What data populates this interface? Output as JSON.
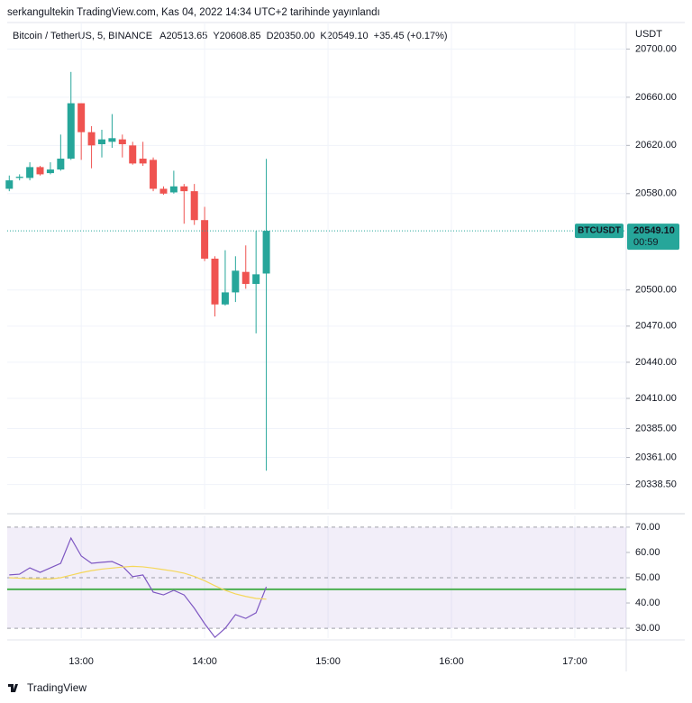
{
  "header": {
    "publisher": "serkangultekin TradingView.com, Kas 04, 2022 14:34 UTC+2 tarihinde yayınlandı",
    "symbol": "Bitcoin / TetherUS, 5, BINANCE",
    "ohlc": [
      {
        "key": "A",
        "value": "20513.65"
      },
      {
        "key": "Y",
        "value": "20608.85"
      },
      {
        "key": "D",
        "value": "20350.00"
      },
      {
        "key": "K",
        "value": "20549.10"
      }
    ],
    "change": "+35.45 (+0.17%)"
  },
  "footer": "TradingView",
  "chart_data": [
    {
      "type": "candlestick",
      "axis_label": "USDT",
      "x": [
        "12:25",
        "12:30",
        "12:35",
        "12:40",
        "12:45",
        "12:50",
        "12:55",
        "13:00",
        "13:05",
        "13:10",
        "13:15",
        "13:20",
        "13:25",
        "13:30",
        "13:35",
        "13:40",
        "13:45",
        "13:50",
        "13:55",
        "14:00",
        "14:05",
        "14:10",
        "14:15",
        "14:20",
        "14:25",
        "14:30"
      ],
      "candles": {
        "open": [
          20584,
          20593,
          20593,
          20602,
          20597,
          20600,
          20609,
          20655,
          20631,
          20621,
          20623,
          20625,
          20620,
          20609,
          20608,
          20584,
          20581,
          20586,
          20582,
          20558,
          20526,
          20488,
          20498,
          20515,
          20505,
          20513.65
        ],
        "high": [
          20595,
          20596,
          20606,
          20603,
          20606,
          20629,
          20681,
          20655,
          20636,
          20633,
          20646,
          20629,
          20623,
          20623,
          20610,
          20586,
          20599,
          20588,
          20588,
          20569,
          20528,
          20533,
          20528,
          20537,
          20549,
          20608.85
        ],
        "low": [
          20582,
          20591,
          20591,
          20595,
          20596,
          20599,
          20608,
          20608,
          20601,
          20610,
          20618,
          20610,
          20604,
          20603,
          20582,
          20579,
          20580,
          20555,
          20554,
          20524,
          20478,
          20487,
          20490,
          20501,
          20464,
          20350
        ],
        "close": [
          20591,
          20594,
          20602,
          20596,
          20600,
          20609,
          20655,
          20631,
          20620,
          20625,
          20626,
          20621,
          20605,
          20605,
          20584,
          20580,
          20586,
          20582,
          20558,
          20526,
          20488,
          20498,
          20516,
          20505,
          20513,
          20549.1
        ]
      },
      "up_color": "#26a69a",
      "down_color": "#ef5350",
      "last_price": {
        "symbol": "BTCUSDT",
        "label": "20549.10",
        "countdown": "00:59"
      },
      "xlim": [
        "12:24",
        "17:25"
      ],
      "xticks": [
        "13:00",
        "14:00",
        "15:00",
        "16:00",
        "17:00"
      ],
      "ylim": [
        20318,
        20722
      ],
      "yticks": [
        {
          "value": 20700,
          "label": "20700.00"
        },
        {
          "value": 20660,
          "label": "20660.00"
        },
        {
          "value": 20620,
          "label": "20620.00"
        },
        {
          "value": 20580,
          "label": "20580.00"
        },
        {
          "value": 20500,
          "label": "20500.00"
        },
        {
          "value": 20470,
          "label": "20470.00"
        },
        {
          "value": 20440,
          "label": "20440.00"
        },
        {
          "value": 20410,
          "label": "20410.00"
        },
        {
          "value": 20385,
          "label": "20385.00"
        },
        {
          "value": 20361,
          "label": "20361.00"
        },
        {
          "value": 20338.5,
          "label": "20338.50"
        }
      ],
      "grid": true
    },
    {
      "type": "line",
      "series": [
        {
          "color": "#7e57c2",
          "values": [
            51.1,
            51.4,
            53.9,
            52.1,
            53.9,
            55.7,
            65.7,
            58.6,
            55.7,
            56.1,
            56.4,
            54.6,
            50.4,
            51.1,
            44.3,
            43.2,
            45.0,
            43.2,
            37.9,
            31.8,
            26.4,
            30.0,
            35.4,
            33.9,
            36.1,
            46.4
          ]
        },
        {
          "color": "#f5d75a",
          "values": [
            50.0,
            49.8,
            49.6,
            49.5,
            49.5,
            50.0,
            51.0,
            52.0,
            52.8,
            53.4,
            53.8,
            54.2,
            54.5,
            54.3,
            53.8,
            53.2,
            52.6,
            51.8,
            50.5,
            48.8,
            46.8,
            45.0,
            43.6,
            42.6,
            41.8,
            41.5
          ]
        }
      ],
      "band": [
        30,
        70
      ],
      "band_color": "#7e57c2",
      "dashed_levels": [
        70,
        50,
        30
      ],
      "hline": 45.4,
      "hline_color": "#4caf50",
      "ylim": [
        26.1,
        74.6
      ],
      "yticks": [
        {
          "value": 70,
          "label": "70.00"
        },
        {
          "value": 60,
          "label": "60.00"
        },
        {
          "value": 50,
          "label": "50.00"
        },
        {
          "value": 40,
          "label": "40.00"
        },
        {
          "value": 30,
          "label": "30.00"
        }
      ]
    }
  ]
}
